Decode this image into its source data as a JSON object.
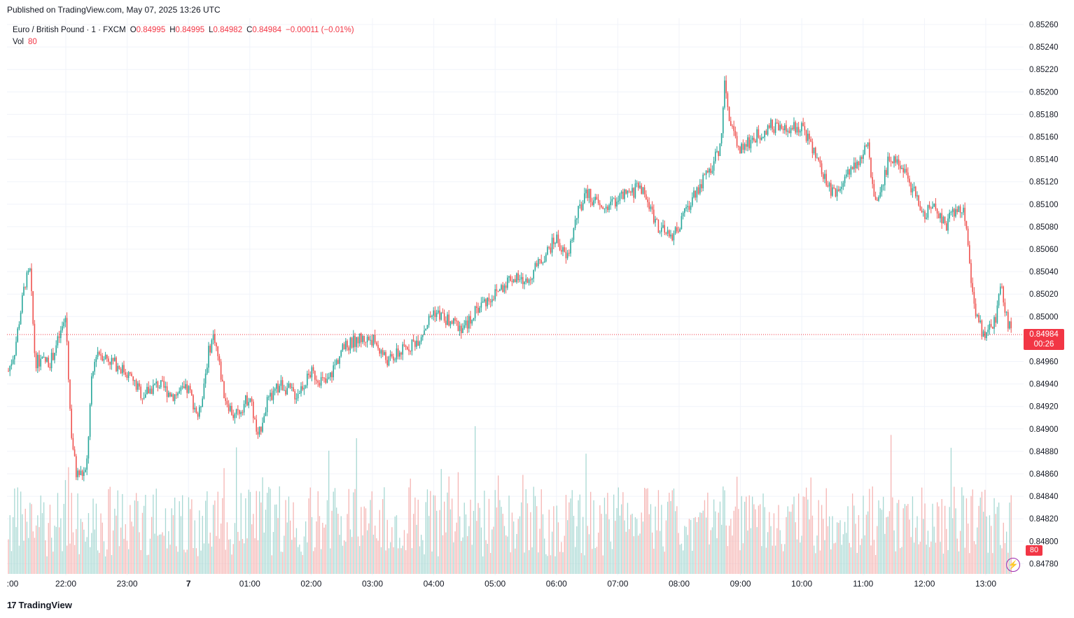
{
  "header": {
    "published": "Published on TradingView.com, May 07, 2025 13:26 UTC"
  },
  "legend": {
    "symbol": "Euro / British Pound · 1 · FXCM",
    "open_label": "O",
    "open": "0.84995",
    "high_label": "H",
    "high": "0.84995",
    "low_label": "L",
    "low": "0.84982",
    "close_label": "C",
    "close": "0.84984",
    "change": "−0.00011 (−0.01%)",
    "vol_label": "Vol",
    "vol": "80"
  },
  "badges": {
    "last_price": "0.84984",
    "countdown": "00:26",
    "last_volume": "80"
  },
  "footer": {
    "brand": "TradingView",
    "logo_mark": "17"
  },
  "colors": {
    "up": "#26a69a",
    "down": "#ef5350",
    "grid": "#f0f3fa",
    "last_price_line": "#f23645",
    "badge": "#f23645"
  },
  "icons": {
    "flash": "lightning-bolt-icon",
    "logo": "tradingview-logo-icon"
  },
  "chart_data": {
    "type": "candlestick",
    "title": "Euro / British Pound · 1 · FXCM",
    "interval": "1 minute",
    "ylim": [
      0.8477,
      0.8527
    ],
    "y_ticks": [
      "0.85260",
      "0.85240",
      "0.85220",
      "0.85200",
      "0.85180",
      "0.85160",
      "0.85140",
      "0.85120",
      "0.85100",
      "0.85080",
      "0.85060",
      "0.85040",
      "0.85020",
      "0.85000",
      "0.84980",
      "0.84960",
      "0.84940",
      "0.84920",
      "0.84900",
      "0.84880",
      "0.84860",
      "0.84840",
      "0.84820",
      "0.84800",
      "0.84780"
    ],
    "x_ticks": [
      ":00",
      "22:00",
      "23:00",
      "7",
      "01:00",
      "02:00",
      "03:00",
      "04:00",
      "05:00",
      "06:00",
      "07:00",
      "08:00",
      "09:00",
      "10:00",
      "11:00",
      "12:00",
      "13:00"
    ],
    "last_price": 0.84984,
    "price_path": [
      [
        "21:00",
        0.8494
      ],
      [
        "21:10",
        0.8497
      ],
      [
        "21:20",
        0.8503
      ],
      [
        "21:25",
        0.8504
      ],
      [
        "21:30",
        0.8496
      ],
      [
        "21:45",
        0.8496
      ],
      [
        "21:55",
        0.84985
      ],
      [
        "22:00",
        0.85
      ],
      [
        "22:05",
        0.849
      ],
      [
        "22:10",
        0.8486
      ],
      [
        "22:20",
        0.8486
      ],
      [
        "22:25",
        0.8494
      ],
      [
        "22:30",
        0.8497
      ],
      [
        "22:45",
        0.8496
      ],
      [
        "23:00",
        0.8495
      ],
      [
        "23:15",
        0.8493
      ],
      [
        "23:30",
        0.8494
      ],
      [
        "23:45",
        0.8493
      ],
      [
        "00:00",
        0.84935
      ],
      [
        "00:10",
        0.8491
      ],
      [
        "00:20",
        0.8497
      ],
      [
        "00:25",
        0.84985
      ],
      [
        "00:35",
        0.8493
      ],
      [
        "00:45",
        0.8491
      ],
      [
        "01:00",
        0.8493
      ],
      [
        "01:08",
        0.8489
      ],
      [
        "01:15",
        0.8492
      ],
      [
        "01:30",
        0.8494
      ],
      [
        "01:45",
        0.8493
      ],
      [
        "02:00",
        0.8495
      ],
      [
        "02:15",
        0.8494
      ],
      [
        "02:30",
        0.8497
      ],
      [
        "02:45",
        0.8498
      ],
      [
        "03:00",
        0.8498
      ],
      [
        "03:15",
        0.8496
      ],
      [
        "03:30",
        0.8497
      ],
      [
        "03:45",
        0.8498
      ],
      [
        "04:00",
        0.85005
      ],
      [
        "04:15",
        0.84995
      ],
      [
        "04:30",
        0.8499
      ],
      [
        "04:45",
        0.8501
      ],
      [
        "05:00",
        0.8502
      ],
      [
        "05:15",
        0.85035
      ],
      [
        "05:30",
        0.8503
      ],
      [
        "05:45",
        0.8505
      ],
      [
        "06:00",
        0.8507
      ],
      [
        "06:10",
        0.8505
      ],
      [
        "06:20",
        0.8509
      ],
      [
        "06:30",
        0.8511
      ],
      [
        "06:45",
        0.85095
      ],
      [
        "07:00",
        0.85105
      ],
      [
        "07:15",
        0.8511
      ],
      [
        "07:20",
        0.8512
      ],
      [
        "07:30",
        0.851
      ],
      [
        "07:40",
        0.8508
      ],
      [
        "07:50",
        0.8507
      ],
      [
        "08:00",
        0.8508
      ],
      [
        "08:15",
        0.8511
      ],
      [
        "08:30",
        0.8513
      ],
      [
        "08:40",
        0.8515
      ],
      [
        "08:45",
        0.8521
      ],
      [
        "08:50",
        0.8517
      ],
      [
        "09:00",
        0.8515
      ],
      [
        "09:15",
        0.8516
      ],
      [
        "09:30",
        0.8517
      ],
      [
        "09:45",
        0.85165
      ],
      [
        "10:00",
        0.8517
      ],
      [
        "10:15",
        0.8514
      ],
      [
        "10:25",
        0.85115
      ],
      [
        "10:35",
        0.8511
      ],
      [
        "10:45",
        0.8513
      ],
      [
        "11:00",
        0.85145
      ],
      [
        "11:05",
        0.8515
      ],
      [
        "11:10",
        0.8511
      ],
      [
        "11:15",
        0.851
      ],
      [
        "11:25",
        0.8514
      ],
      [
        "11:35",
        0.8514
      ],
      [
        "11:45",
        0.8512
      ],
      [
        "12:00",
        0.8509
      ],
      [
        "12:10",
        0.851
      ],
      [
        "12:20",
        0.8508
      ],
      [
        "12:30",
        0.85095
      ],
      [
        "12:40",
        0.8509
      ],
      [
        "12:45",
        0.8504
      ],
      [
        "12:50",
        0.85
      ],
      [
        "13:00",
        0.8498
      ],
      [
        "13:05",
        0.8499
      ],
      [
        "13:10",
        0.85
      ],
      [
        "13:15",
        0.8503
      ],
      [
        "13:20",
        0.85
      ],
      [
        "13:26",
        0.84984
      ]
    ],
    "volume_range": [
      0,
      120
    ],
    "last_volume": 80
  }
}
